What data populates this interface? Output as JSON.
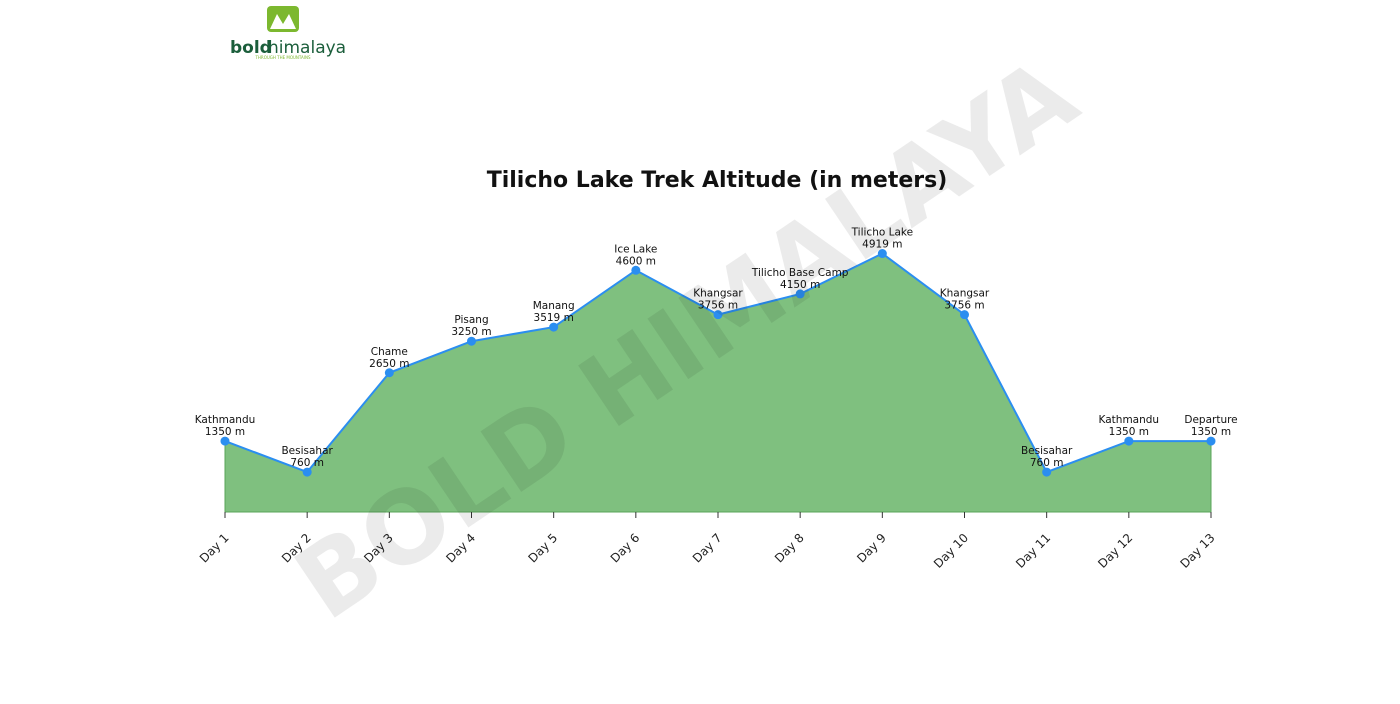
{
  "logo": {
    "word1": "bold",
    "word2": "himalaya",
    "tagline": "THROUGH THE MOUNTAINS"
  },
  "watermark": "BOLD HIMALAYA",
  "chart_data": {
    "type": "area",
    "title": "Tilicho Lake Trek Altitude (in meters)",
    "categories": [
      "Day 1",
      "Day 2",
      "Day 3",
      "Day 4",
      "Day 5",
      "Day 6",
      "Day 7",
      "Day 8",
      "Day 9",
      "Day 10",
      "Day 11",
      "Day 12",
      "Day 13"
    ],
    "point_labels": [
      "Kathmandu",
      "Besisahar",
      "Chame",
      "Pisang",
      "Manang",
      "Ice Lake",
      "Khangsar",
      "Tilicho Base Camp",
      "Tilicho Lake",
      "Khangsar",
      "Besisahar",
      "Kathmandu",
      "Departure"
    ],
    "values": [
      1350,
      760,
      2650,
      3250,
      3519,
      4600,
      3756,
      4150,
      4919,
      3756,
      760,
      1350,
      1350
    ],
    "value_labels": [
      "1350 m",
      "760 m",
      "2650 m",
      "3250 m",
      "3519 m",
      "4600 m",
      "3756 m",
      "4150 m",
      "4919 m",
      "3756 m",
      "760 m",
      "1350 m",
      "1350 m"
    ],
    "ylim": [
      0,
      5500
    ],
    "color": "#2b8ef0",
    "fill": "#7fc07f"
  }
}
